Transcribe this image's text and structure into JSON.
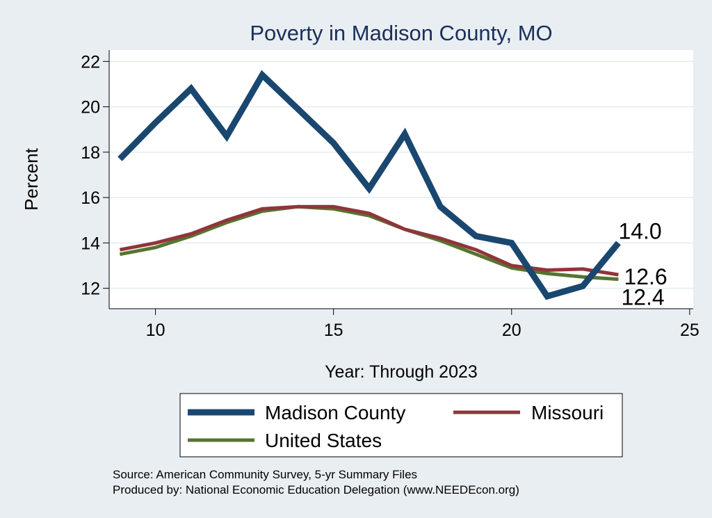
{
  "chart_data": {
    "type": "line",
    "title": "Poverty in Madison County, MO",
    "xlabel": "Year: Through 2023",
    "ylabel": "Percent",
    "xlim": [
      8.7,
      25.1
    ],
    "ylim": [
      11.1,
      22.5
    ],
    "xticks": [
      10,
      15,
      20,
      25
    ],
    "yticks": [
      12,
      14,
      16,
      18,
      20,
      22
    ],
    "grid": true,
    "legend_position": "bottom",
    "x": [
      9,
      10,
      11,
      12,
      13,
      14,
      15,
      16,
      17,
      18,
      19,
      20,
      21,
      22,
      23
    ],
    "series": [
      {
        "name": "Madison County",
        "color": "#1a476f",
        "values": [
          17.7,
          19.3,
          20.8,
          18.7,
          21.4,
          19.9,
          18.4,
          16.4,
          18.8,
          15.6,
          14.3,
          14.0,
          11.65,
          12.1,
          14.0
        ],
        "end_label": "14.0"
      },
      {
        "name": "Missouri",
        "color": "#90353b",
        "values": [
          13.7,
          14.0,
          14.4,
          15.0,
          15.5,
          15.6,
          15.6,
          15.3,
          14.6,
          14.2,
          13.7,
          13.0,
          12.8,
          12.85,
          12.6
        ],
        "end_label": "12.6"
      },
      {
        "name": "United States",
        "color": "#55752f",
        "values": [
          13.5,
          13.8,
          14.3,
          14.9,
          15.4,
          15.6,
          15.5,
          15.2,
          14.6,
          14.1,
          13.5,
          12.9,
          12.65,
          12.5,
          12.4
        ],
        "end_label": "12.4"
      }
    ],
    "notes": [
      "Source: American Community Survey, 5-yr Summary Files",
      "Produced by: National Economic Education Delegation (www.NEEDEcon.org)"
    ]
  }
}
